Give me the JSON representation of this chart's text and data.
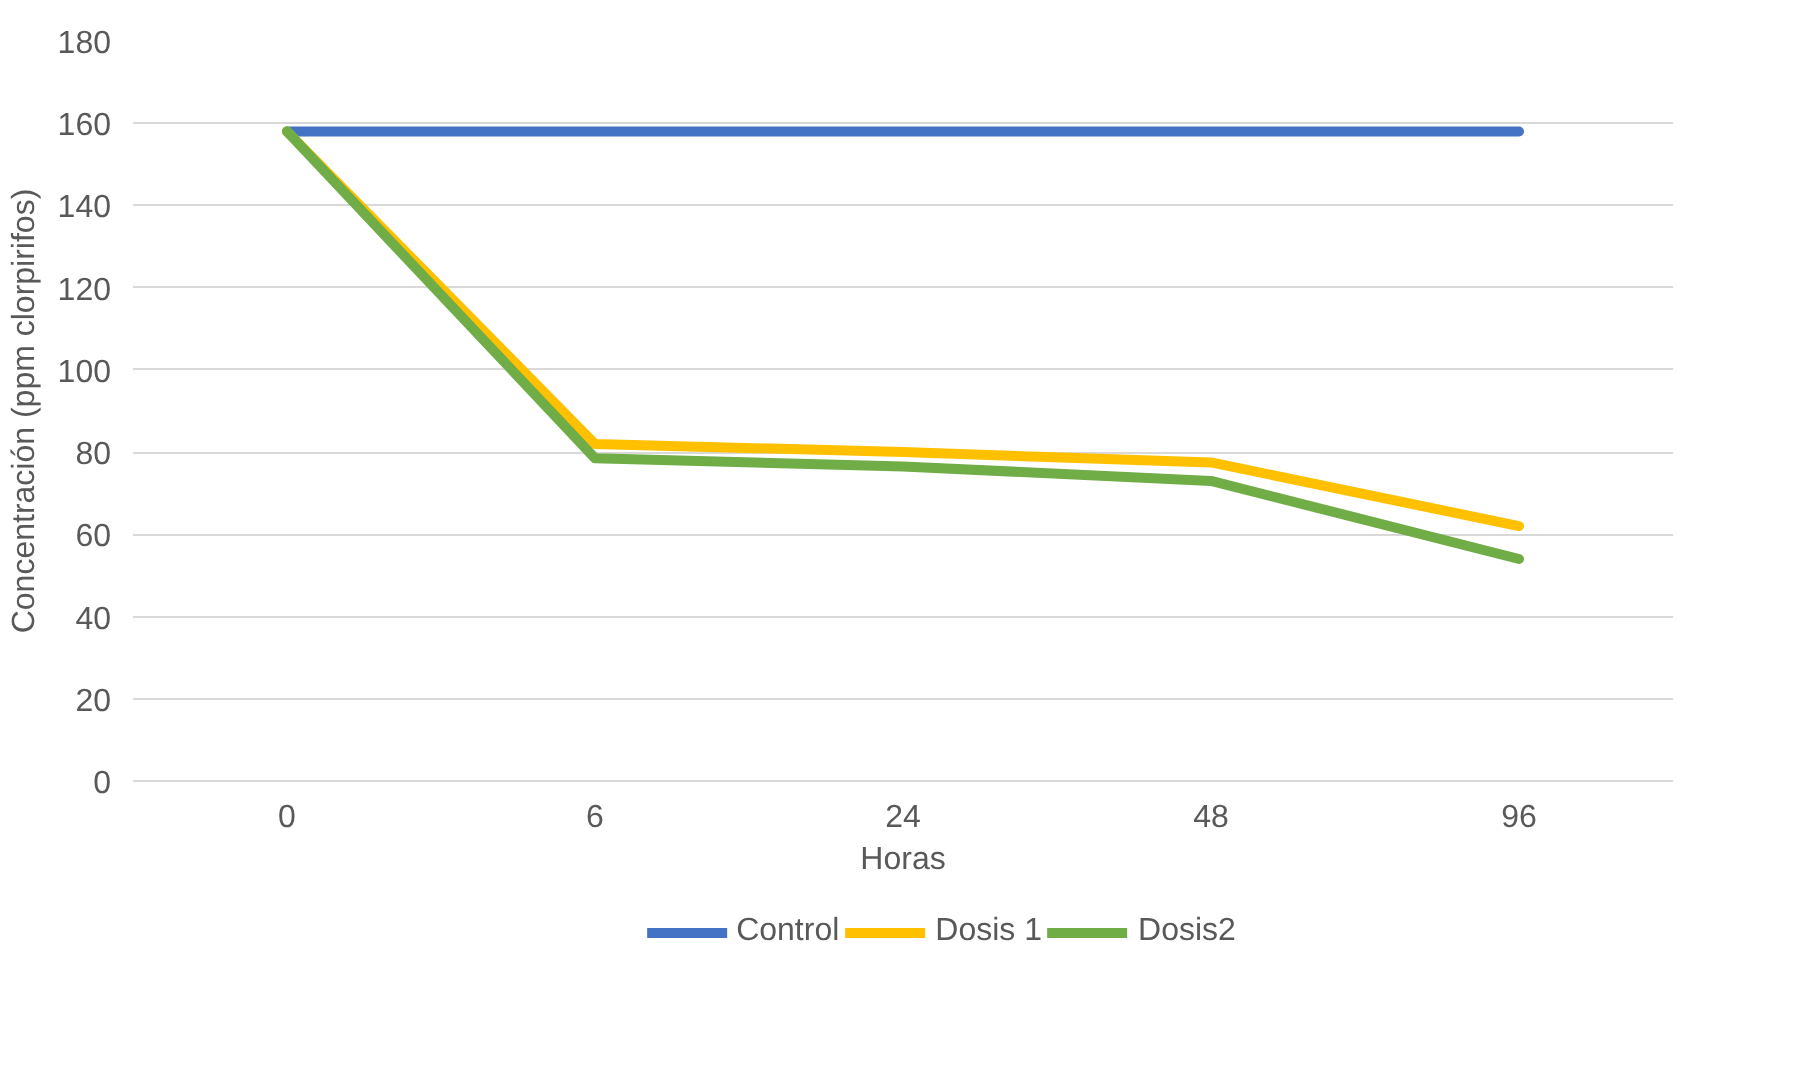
{
  "chart_data": {
    "type": "line",
    "xlabel": "Horas",
    "ylabel": "Concentración (ppm clorpirifos)",
    "categories": [
      "0",
      "6",
      "24",
      "48",
      "96"
    ],
    "series": [
      {
        "name": "Control",
        "color": "#4472c4",
        "values": [
          158,
          158,
          158,
          158,
          158
        ]
      },
      {
        "name": "Dosis 1",
        "color": "#ffc000",
        "values": [
          158,
          82,
          80,
          77.5,
          62
        ]
      },
      {
        "name": "Dosis2",
        "color": "#70ad47",
        "values": [
          158,
          78.5,
          76.5,
          73,
          54
        ]
      }
    ],
    "ylim": [
      0,
      180
    ],
    "yticks": [
      0,
      20,
      40,
      60,
      80,
      100,
      120,
      140,
      160,
      180
    ],
    "grid": "y",
    "legend": "bottom",
    "marker": "none",
    "line_style": "solid"
  }
}
